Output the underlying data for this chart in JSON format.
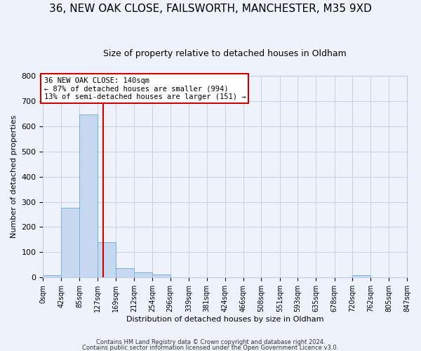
{
  "title": "36, NEW OAK CLOSE, FAILSWORTH, MANCHESTER, M35 9XD",
  "subtitle": "Size of property relative to detached houses in Oldham",
  "xlabel": "Distribution of detached houses by size in Oldham",
  "ylabel": "Number of detached properties",
  "bin_edges": [
    0,
    42,
    85,
    127,
    169,
    212,
    254,
    296,
    339,
    381,
    424,
    466,
    508,
    551,
    593,
    635,
    678,
    720,
    762,
    805,
    847
  ],
  "bin_counts": [
    8,
    275,
    645,
    140,
    38,
    20,
    12,
    0,
    0,
    0,
    0,
    0,
    0,
    0,
    0,
    0,
    0,
    8,
    0,
    0
  ],
  "bar_color": "#c5d8f0",
  "bar_edge_color": "#7aafd4",
  "vline_x": 140,
  "vline_color": "#cc0000",
  "annotation_text": "36 NEW OAK CLOSE: 140sqm\n← 87% of detached houses are smaller (994)\n13% of semi-detached houses are larger (151) →",
  "annotation_box_color": "white",
  "annotation_box_edge_color": "#cc0000",
  "ylim": [
    0,
    800
  ],
  "yticks": [
    0,
    100,
    200,
    300,
    400,
    500,
    600,
    700,
    800
  ],
  "footer1": "Contains HM Land Registry data © Crown copyright and database right 2024.",
  "footer2": "Contains public sector information licensed under the Open Government Licence v3.0.",
  "tick_labels": [
    "0sqm",
    "42sqm",
    "85sqm",
    "127sqm",
    "169sqm",
    "212sqm",
    "254sqm",
    "296sqm",
    "339sqm",
    "381sqm",
    "424sqm",
    "466sqm",
    "508sqm",
    "551sqm",
    "593sqm",
    "635sqm",
    "678sqm",
    "720sqm",
    "762sqm",
    "805sqm",
    "847sqm"
  ],
  "bg_color": "#eef2fb",
  "grid_color": "#c0cce0",
  "title_fontsize": 11,
  "subtitle_fontsize": 9,
  "axis_label_fontsize": 8,
  "tick_fontsize": 7
}
